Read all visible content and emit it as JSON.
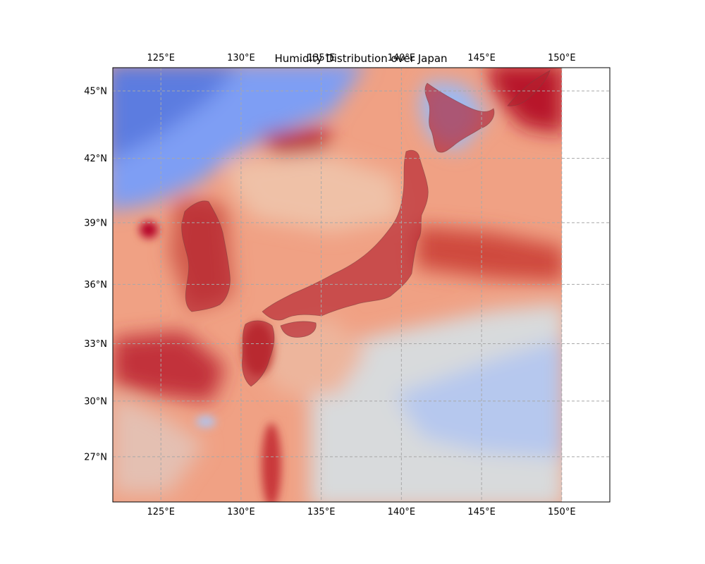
{
  "title": "Humidity Distribution over Japan",
  "colormap": "coolwarm",
  "colors": {
    "low": "#3b4cc0",
    "mid_low": "#8db0fe",
    "neutral": "#dddcdc",
    "mid_high": "#f4987a",
    "high": "#b40426"
  },
  "map": {
    "lon_range": [
      122,
      153
    ],
    "lat_range": [
      24.5,
      46
    ],
    "data_lon_max": 150,
    "gridlines": "dashed"
  },
  "lon_ticks": [
    {
      "value": 125,
      "label": "125°E"
    },
    {
      "value": 130,
      "label": "130°E"
    },
    {
      "value": 135,
      "label": "135°E"
    },
    {
      "value": 140,
      "label": "140°E"
    },
    {
      "value": 145,
      "label": "145°E"
    },
    {
      "value": 150,
      "label": "150°E"
    }
  ],
  "lat_ticks": [
    {
      "value": 27,
      "label": "27°N"
    },
    {
      "value": 30,
      "label": "30°N"
    },
    {
      "value": 33,
      "label": "33°N"
    },
    {
      "value": 36,
      "label": "36°N"
    },
    {
      "value": 39,
      "label": "39°N"
    },
    {
      "value": 42,
      "label": "42°N"
    },
    {
      "value": 45,
      "label": "45°N"
    }
  ]
}
